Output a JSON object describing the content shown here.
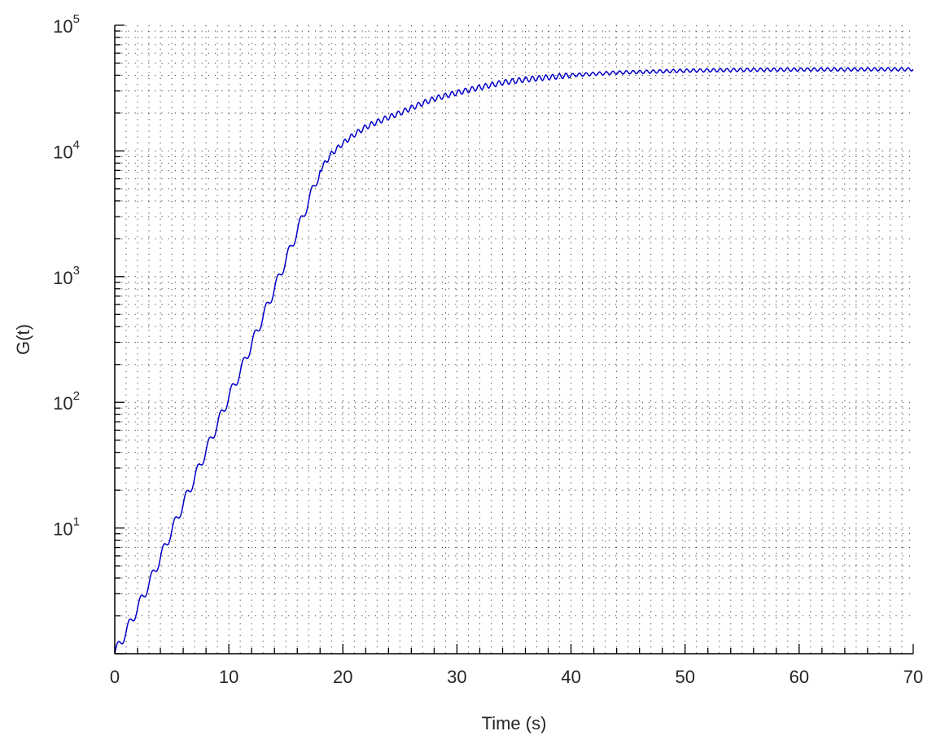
{
  "chart_data": {
    "type": "line",
    "title": "",
    "xlabel": "Time (s)",
    "ylabel": "G(t)",
    "yscale": "log",
    "xlim": [
      0,
      70
    ],
    "ylim": [
      1,
      100000
    ],
    "x_ticks": [
      0,
      10,
      20,
      30,
      40,
      50,
      60,
      70
    ],
    "x_tick_labels": [
      "0",
      "10",
      "20",
      "30",
      "40",
      "50",
      "60",
      "70"
    ],
    "y_ticks": [
      10,
      100,
      1000,
      10000,
      100000
    ],
    "y_tick_labels": [
      {
        "base": "10",
        "exp": "1"
      },
      {
        "base": "10",
        "exp": "2"
      },
      {
        "base": "10",
        "exp": "3"
      },
      {
        "base": "10",
        "exp": "4"
      },
      {
        "base": "10",
        "exp": "5"
      }
    ],
    "grid": "dotted, major and minor",
    "legend": "none",
    "series": [
      {
        "color": "#0000cc",
        "x": [
          0,
          1,
          2,
          3,
          4,
          5,
          6,
          7,
          8,
          9,
          10,
          11,
          12,
          13,
          14,
          15,
          16,
          17,
          18,
          19,
          20,
          21,
          22,
          23,
          24,
          25,
          26,
          27,
          28,
          29,
          30,
          32,
          34,
          36,
          38,
          40,
          42,
          44,
          46,
          48,
          50,
          52,
          54,
          56,
          58,
          60,
          62,
          64,
          66,
          68,
          70
        ],
        "y": [
          1,
          1.5,
          2.3,
          3.6,
          5.8,
          9.5,
          15.5,
          25,
          41,
          67,
          110,
          175,
          290,
          480,
          800,
          1350,
          2300,
          4000,
          7000,
          9500,
          11500,
          13500,
          15500,
          17000,
          18500,
          20000,
          22000,
          24000,
          26000,
          27500,
          29000,
          32000,
          35000,
          37000,
          38500,
          40000,
          41000,
          42000,
          42500,
          43000,
          43500,
          43800,
          44000,
          44200,
          44300,
          44400,
          44500,
          44500,
          44600,
          44600,
          44600
        ]
      }
    ]
  }
}
